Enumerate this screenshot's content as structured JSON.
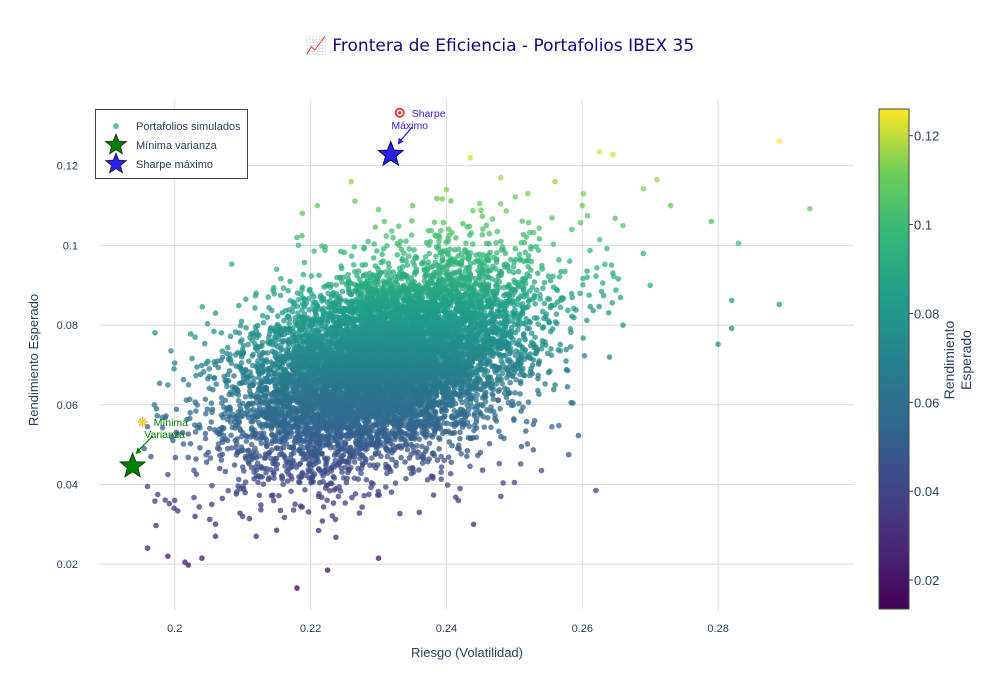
{
  "chart_data": {
    "type": "scatter",
    "title": "📈 Frontera de Eficiencia - Portafolios IBEX 35",
    "xlabel": "Riesgo (Volatilidad)",
    "ylabel": "Rendimiento Esperado",
    "xlim": [
      0.189,
      0.3
    ],
    "ylim": [
      0.0085,
      0.1365
    ],
    "x_ticks": [
      {
        "value": 0.2,
        "label": "0.2"
      },
      {
        "value": 0.22,
        "label": "0.22"
      },
      {
        "value": 0.24,
        "label": "0.24"
      },
      {
        "value": 0.26,
        "label": "0.26"
      },
      {
        "value": 0.28,
        "label": "0.28"
      }
    ],
    "y_ticks": [
      {
        "value": 0.02,
        "label": "0.02"
      },
      {
        "value": 0.04,
        "label": "0.04"
      },
      {
        "value": 0.06,
        "label": "0.06"
      },
      {
        "value": 0.08,
        "label": "0.08"
      },
      {
        "value": 0.1,
        "label": "0.1"
      },
      {
        "value": 0.12,
        "label": "0.12"
      }
    ],
    "grid": true,
    "legend_position": "top-left",
    "legend": [
      {
        "label": "Portafolios simulados",
        "marker": "dot"
      },
      {
        "label": "Mínima varianza",
        "marker": "star",
        "color": "#008000"
      },
      {
        "label": "Sharpe máximo",
        "marker": "star",
        "color": "#2b1ee8"
      }
    ],
    "colorscale": "viridis",
    "colorbar": {
      "title_lines": [
        "Rendimiento",
        "Esperado"
      ],
      "range": [
        0.0135,
        0.126
      ],
      "ticks": [
        {
          "value": 0.02,
          "label": "0.02"
        },
        {
          "value": 0.04,
          "label": "0.04"
        },
        {
          "value": 0.06,
          "label": "0.06"
        },
        {
          "value": 0.08,
          "label": "0.08"
        },
        {
          "value": 0.1,
          "label": "0.1"
        },
        {
          "value": 0.12,
          "label": "0.12"
        }
      ]
    },
    "series": [
      {
        "name": "Portafolios simulados",
        "kind": "points",
        "sample_points": [
          [
            0.289,
            0.1262
          ],
          [
            0.2935,
            0.1092
          ],
          [
            0.289,
            0.0852
          ],
          [
            0.282,
            0.0792
          ],
          [
            0.2625,
            0.1235
          ],
          [
            0.2645,
            0.1228
          ],
          [
            0.2435,
            0.122
          ],
          [
            0.271,
            0.1165
          ],
          [
            0.273,
            0.11
          ],
          [
            0.279,
            0.106
          ],
          [
            0.283,
            0.1005
          ],
          [
            0.282,
            0.0862
          ],
          [
            0.28,
            0.0752
          ],
          [
            0.261,
            0.0875
          ],
          [
            0.258,
            0.0475
          ],
          [
            0.262,
            0.0385
          ],
          [
            0.25,
            0.0405
          ],
          [
            0.254,
            0.0435
          ],
          [
            0.248,
            0.037
          ],
          [
            0.226,
            0.116
          ],
          [
            0.221,
            0.11
          ],
          [
            0.218,
            0.102
          ],
          [
            0.215,
            0.094
          ],
          [
            0.212,
            0.088
          ],
          [
            0.206,
            0.083
          ],
          [
            0.203,
            0.077
          ],
          [
            0.2,
            0.0705
          ],
          [
            0.199,
            0.065
          ],
          [
            0.197,
            0.06
          ],
          [
            0.196,
            0.0545
          ],
          [
            0.1955,
            0.049
          ],
          [
            0.1965,
            0.047
          ],
          [
            0.199,
            0.0425
          ],
          [
            0.196,
            0.0395
          ],
          [
            0.1975,
            0.0375
          ],
          [
            0.196,
            0.024
          ],
          [
            0.199,
            0.022
          ],
          [
            0.2015,
            0.0205
          ],
          [
            0.202,
            0.0198
          ],
          [
            0.204,
            0.0215
          ],
          [
            0.206,
            0.027
          ],
          [
            0.218,
            0.014
          ],
          [
            0.2225,
            0.0185
          ],
          [
            0.212,
            0.027
          ],
          [
            0.215,
            0.0285
          ],
          [
            0.2,
            0.036
          ],
          [
            0.203,
            0.032
          ],
          [
            0.21,
            0.032
          ],
          [
            0.207,
            0.0365
          ],
          [
            0.23,
            0.0215
          ],
          [
            0.238,
            0.042
          ],
          [
            0.236,
            0.033
          ],
          [
            0.242,
            0.039
          ],
          [
            0.244,
            0.03
          ],
          [
            0.27,
            0.09
          ],
          [
            0.269,
            0.098
          ],
          [
            0.266,
            0.105
          ],
          [
            0.26,
            0.11
          ],
          [
            0.256,
            0.116
          ],
          [
            0.252,
            0.113
          ],
          [
            0.248,
            0.117
          ],
          [
            0.24,
            0.114
          ],
          [
            0.235,
            0.11
          ],
          [
            0.23,
            0.109
          ],
          [
            0.266,
            0.08
          ],
          [
            0.264,
            0.072
          ],
          [
            0.256,
            0.065
          ],
          [
            0.253,
            0.056
          ],
          [
            0.245,
            0.048
          ],
          [
            0.248,
            0.052
          ],
          [
            0.234,
            0.05
          ],
          [
            0.227,
            0.044
          ]
        ],
        "dense_cloud": {
          "count": 9000,
          "center_x": 0.231,
          "center_y": 0.0705,
          "sd_x": 0.0105,
          "sd_y": 0.0125,
          "correlation": 0.42
        }
      },
      {
        "name": "Mínima varianza",
        "kind": "star",
        "color": "#008000",
        "x": 0.1938,
        "y": 0.0446
      },
      {
        "name": "Sharpe máximo",
        "kind": "star",
        "color": "#2b1ee8",
        "x": 0.2318,
        "y": 0.1228
      }
    ],
    "annotations": [
      {
        "target_series": "Mínima varianza",
        "icon": "star-burst-icon",
        "lines": [
          "Mínima",
          "Varianza"
        ],
        "color": "#008000"
      },
      {
        "target_series": "Sharpe máximo",
        "icon": "target-icon",
        "lines": [
          "Sharpe",
          "Máximo"
        ],
        "color": "#2b1ee8"
      }
    ]
  }
}
